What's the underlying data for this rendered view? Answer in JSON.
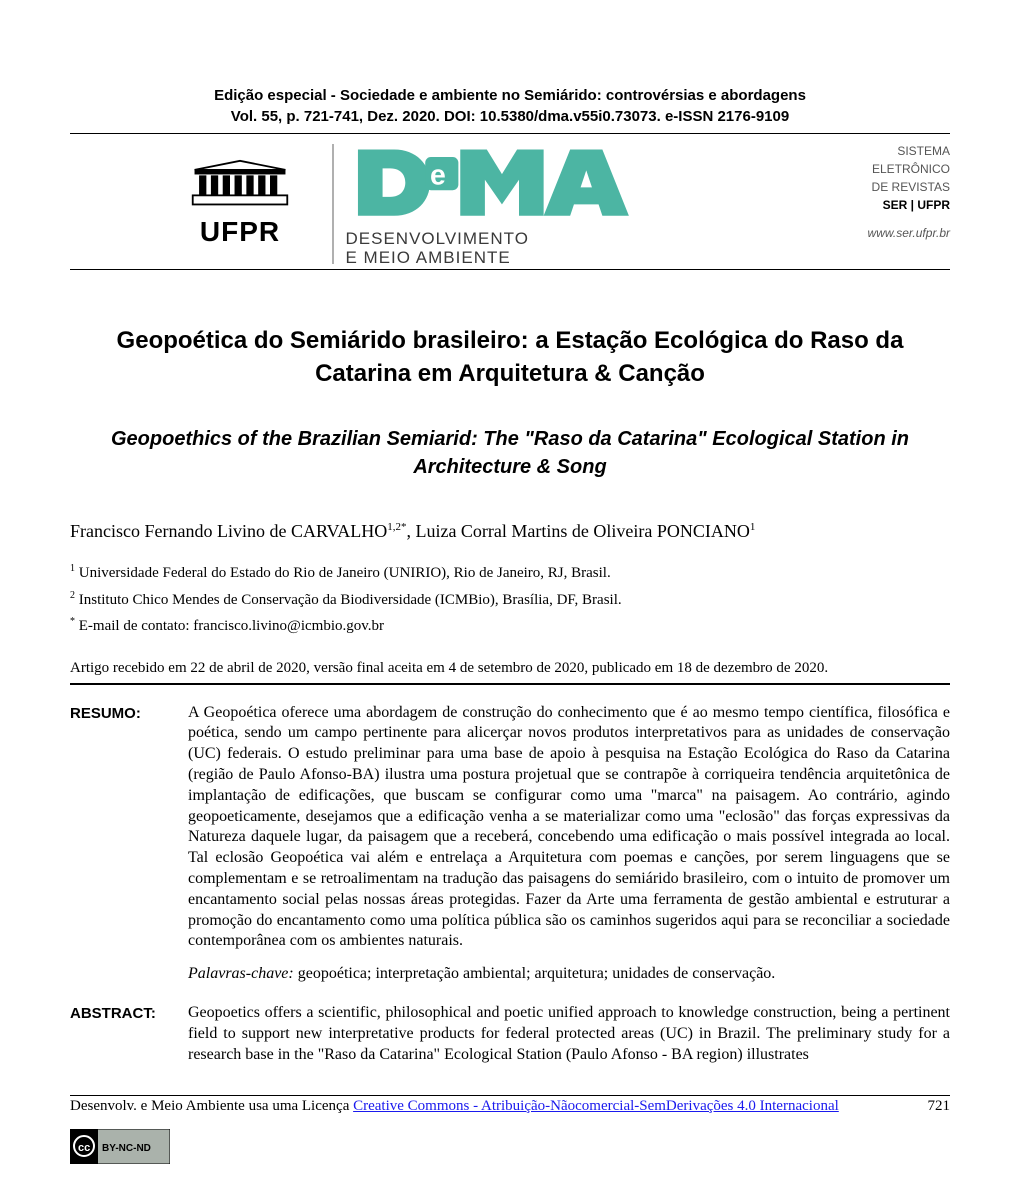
{
  "header": {
    "edition_line1": "Edição especial - Sociedade e ambiente no Semiárido: controvérsias e abordagens",
    "edition_line2": "Vol. 55, p. 721-741, Dez. 2020. DOI: 10.5380/dma.v55i0.73073. e-ISSN 2176-9109",
    "ufpr_label": "UFPR",
    "dema_sub1": "DESENVOLVIMENTO",
    "dema_sub2": "E MEIO AMBIENTE",
    "sistema_l1": "SISTEMA",
    "sistema_l2": "ELETRÔNICO",
    "sistema_l3": "DE REVISTAS",
    "sistema_l4": "SER | UFPR",
    "sistema_url": "www.ser.ufpr.br",
    "logo_colors": {
      "dema_teal": "#4cb5a3",
      "ufpr_black": "#000000",
      "divider_gray": "#b0b0b0"
    }
  },
  "title": {
    "pt": "Geopoética do Semiárido brasileiro: a Estação Ecológica do Raso da Catarina em Arquitetura & Canção",
    "en": "Geopoethics of the Brazilian Semiarid: The \"Raso da Catarina\" Ecological Station in Architecture & Song"
  },
  "authors_html": "Francisco Fernando Livino de CARVALHO<sup>1,2*</sup>, Luiza Corral Martins de Oliveira PONCIANO<sup>1</sup>",
  "affiliations": {
    "a1": "Universidade Federal do Estado do Rio de Janeiro (UNIRIO), Rio de Janeiro, RJ, Brasil.",
    "a2": "Instituto Chico Mendes de Conservação da Biodiversidade (ICMBio), Brasília, DF, Brasil.",
    "email_label": "E-mail de contato:",
    "email": "francisco.livino@icmbio.gov.br"
  },
  "dates_line": "Artigo recebido em 22 de abril de 2020, versão final aceita em 4 de setembro de 2020, publicado em 18 de dezembro de 2020.",
  "resumo": {
    "label": "RESUMO:",
    "body": "A Geopoética oferece uma abordagem de construção do conhecimento que é ao mesmo tempo científica, filosófica e poética, sendo um campo pertinente para alicerçar novos produtos interpretativos para as unidades de conservação (UC) federais. O estudo preliminar para uma base de apoio à pesquisa na Estação Ecológica do Raso da Catarina (região de Paulo Afonso-BA) ilustra uma postura projetual que se contrapõe à corriqueira tendência arquitetônica de implantação de edificações, que buscam se configurar como uma \"marca\" na paisagem. Ao contrário, agindo geopoeticamente, desejamos que a edificação venha a se materializar como uma \"eclosão\" das forças expressivas da Natureza daquele lugar, da paisagem que a receberá, concebendo uma edificação o mais possível integrada ao local. Tal eclosão Geopoética vai além e entrelaça a Arquitetura com poemas e canções, por serem linguagens que se complementam e se retroalimentam na tradução das paisagens do semiárido brasileiro, com o intuito de promover um encantamento social pelas nossas áreas protegidas. Fazer da Arte uma ferramenta de gestão ambiental e estruturar a promoção do encantamento como uma política pública são os caminhos sugeridos aqui para se reconciliar a sociedade contemporânea com os ambientes naturais.",
    "keywords_label": "Palavras-chave:",
    "keywords": "geopoética; interpretação ambiental; arquitetura; unidades de conservação."
  },
  "abstract": {
    "label": "ABSTRACT:",
    "body": "Geopoetics offers a scientific, philosophical and poetic unified approach to knowledge construction, being a pertinent field to support new interpretative products for federal protected areas (UC) in Brazil. The preliminary study for a research base in the \"Raso da Catarina\" Ecological Station (Paulo Afonso - BA region) illustrates"
  },
  "footer": {
    "text_prefix": "Desenvolv. e Meio Ambiente usa uma Licença ",
    "link_text": "Creative Commons - Atribuição-Nãocomercial-SemDerivações 4.0 Internacional",
    "page_number": "721",
    "cc_alt": "CC BY-NC-ND"
  },
  "typography": {
    "title_pt_fontsize": 24,
    "title_en_fontsize": 20,
    "body_fontsize": 16,
    "header_fontsize": 15
  }
}
